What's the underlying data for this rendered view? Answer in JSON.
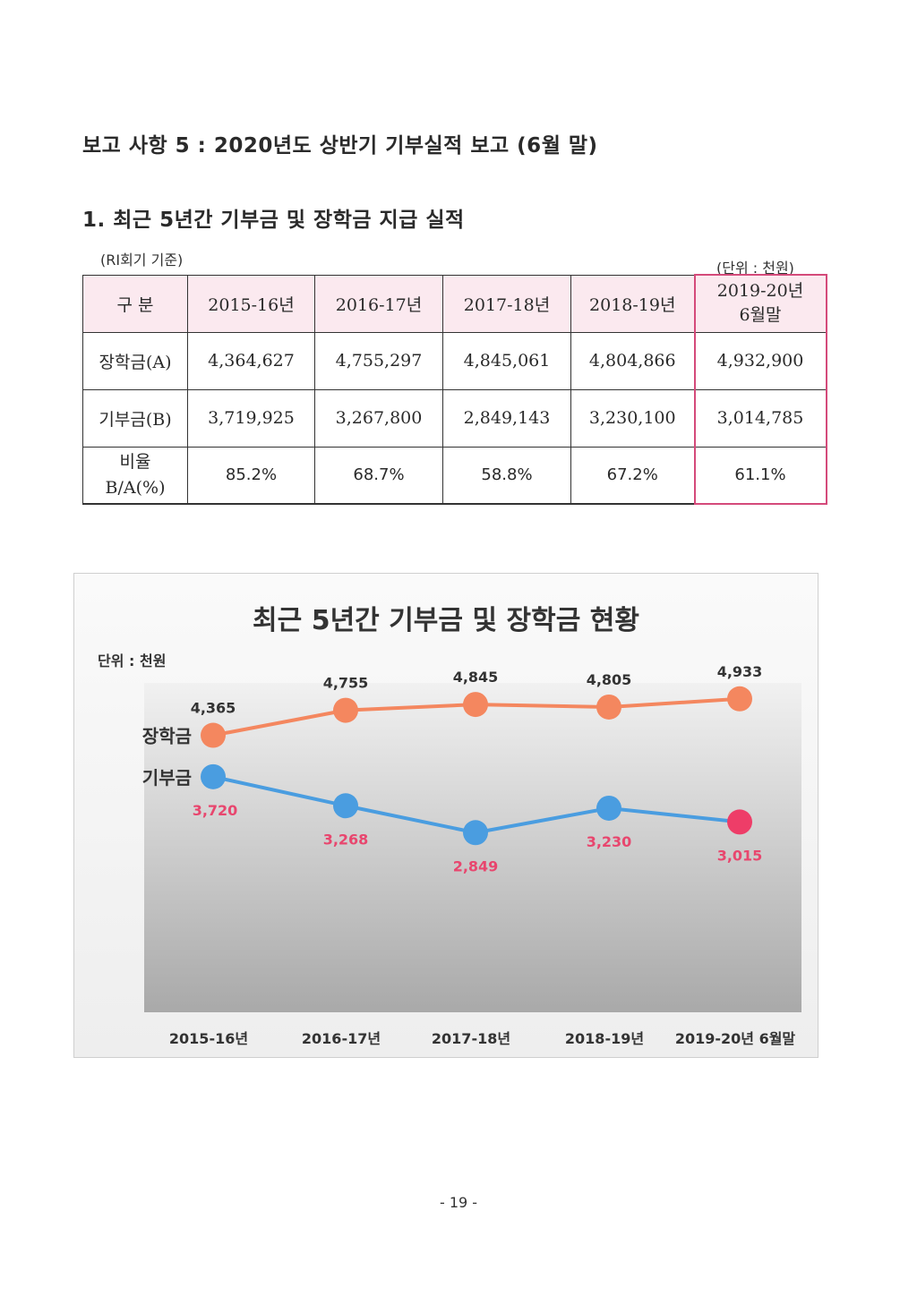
{
  "heading": "보고 사항 5 : 2020년도 상반기 기부실적 보고 (6월 말)",
  "section_title": "1. 최근 5년간 기부금 및 장학금 지급 실적",
  "basis_note": "(RI회기 기준)",
  "unit_note": "(단위 : 천원)",
  "table": {
    "header": [
      "구 분",
      "2015-16년",
      "2016-17년",
      "2017-18년",
      "2018-19년",
      "2019-20년 6월말"
    ],
    "rows": [
      {
        "label": "장학금(A)",
        "values": [
          "4,364,627",
          "4,755,297",
          "4,845,061",
          "4,804,866",
          "4,932,900"
        ]
      },
      {
        "label": "기부금(B)",
        "values": [
          "3,719,925",
          "3,267,800",
          "2,849,143",
          "3,230,100",
          "3,014,785"
        ]
      },
      {
        "label": "비율 B/A(%)",
        "values": [
          "85.2%",
          "68.7%",
          "58.8%",
          "67.2%",
          "61.1%"
        ]
      }
    ]
  },
  "chart_data": {
    "type": "line",
    "title": "최근 5년간 기부금 및 장학금 현황",
    "unit_label": "단위 : 천원",
    "categories": [
      "2015-16년",
      "2016-17년",
      "2017-18년",
      "2018-19년",
      "2019-20년 6월말"
    ],
    "series": [
      {
        "name": "장학금",
        "values": [
          4365,
          4755,
          4845,
          4805,
          4933
        ],
        "labels": [
          "4,365",
          "4,755",
          "4,845",
          "4,805",
          "4,933"
        ],
        "color": "#f4875f"
      },
      {
        "name": "기부금",
        "values": [
          3720,
          3268,
          2849,
          3230,
          3015
        ],
        "labels": [
          "3,720",
          "3,268",
          "2,849",
          "3,230",
          "3,015"
        ],
        "color": "#4a9de0",
        "label_color": "#e8466e",
        "last_point_color": "#ee3d68"
      }
    ],
    "grid": false,
    "legend": "inline-left"
  },
  "page_number": "- 19 -"
}
